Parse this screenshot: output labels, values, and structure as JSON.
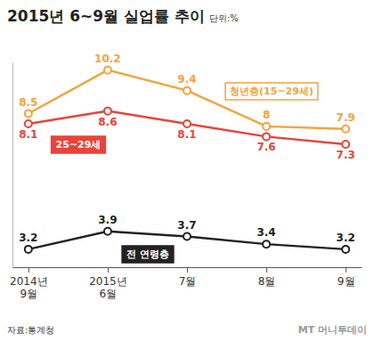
{
  "chart_data": {
    "type": "line",
    "title": "2015년 6~9월 실업률 추이",
    "subtitle": "단위:%",
    "source": "자료:통계청",
    "credit": "MT 머니투데이",
    "categories": [
      "2014년\n9월",
      "2015년\n6월",
      "7월",
      "8월",
      "9월"
    ],
    "series": [
      {
        "name": "청년층(15~29세)",
        "color": "#f5a33c",
        "values": [
          8.5,
          10.2,
          9.4,
          8,
          7.9
        ]
      },
      {
        "name": "25~29세",
        "color": "#e8443a",
        "values": [
          8.1,
          8.6,
          8.1,
          7.6,
          7.3
        ]
      },
      {
        "name": "전 연령층",
        "color": "#222222",
        "values": [
          3.2,
          3.9,
          3.7,
          3.4,
          3.2
        ]
      }
    ],
    "ylim": [
      2.5,
      10.5
    ],
    "tick_labels": "x",
    "data_labels": true,
    "marker": "circle",
    "grid": false
  }
}
